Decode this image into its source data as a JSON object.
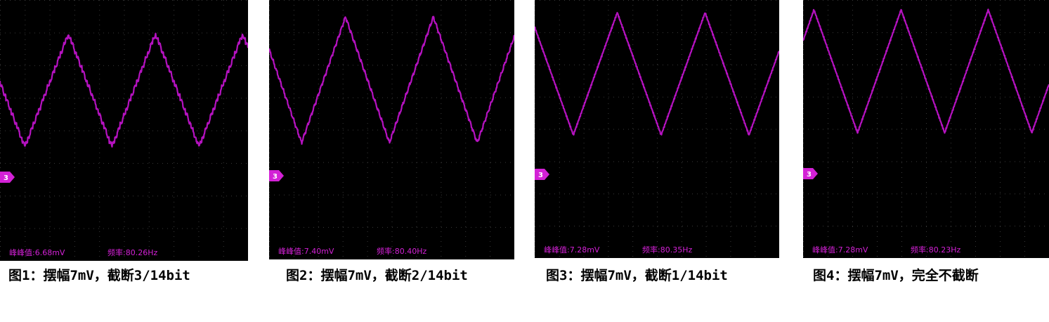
{
  "chart_data": [
    {
      "type": "line",
      "figure": "oscilloscope",
      "channel_marker": "3",
      "peak_to_peak_label": "峰峰值:6.68mV",
      "frequency_label": "频率:80.26Hz",
      "caption": "图1：摆幅7mV，截断3/14bit",
      "waveform": "triangle, staircase-quantized",
      "trace_color": "#b512c0",
      "grid": true
    },
    {
      "type": "line",
      "figure": "oscilloscope",
      "channel_marker": "3",
      "peak_to_peak_label": "峰峰值:7.40mV",
      "frequency_label": "频率:80.40Hz",
      "caption": "图2：摆幅7mV，截断2/14bit",
      "waveform": "triangle, slightly stepped",
      "trace_color": "#b512c0",
      "grid": true
    },
    {
      "type": "line",
      "figure": "oscilloscope",
      "channel_marker": "3",
      "peak_to_peak_label": "峰峰值:7.28mV",
      "frequency_label": "频率:80.35Hz",
      "caption": "图3：摆幅7mV，截断1/14bit",
      "waveform": "triangle",
      "trace_color": "#b512c0",
      "grid": true
    },
    {
      "type": "line",
      "figure": "oscilloscope",
      "channel_marker": "3",
      "peak_to_peak_label": "峰峰值:7.28mV",
      "frequency_label": "频率:80.23Hz",
      "caption": "图4：摆幅7mV，完全不截断",
      "waveform": "triangle",
      "trace_color": "#b512c0",
      "grid": true
    }
  ]
}
